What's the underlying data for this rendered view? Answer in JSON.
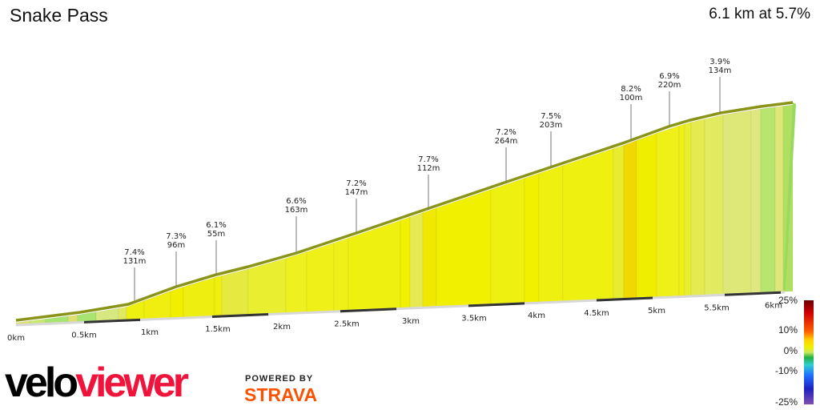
{
  "header": {
    "title": "Snake Pass",
    "summary": "6.1 km at 5.7%"
  },
  "chart_data": {
    "type": "area",
    "title": "Snake Pass",
    "subtitle": "6.1 km at 5.7%",
    "x_ticks": [
      "0km",
      "0.5km",
      "1km",
      "1.5km",
      "2km",
      "2.5km",
      "3km",
      "3.5km",
      "4km",
      "4.5km",
      "5km",
      "5.5km",
      "6km"
    ],
    "segment_annotations": [
      {
        "gradient": "7.4%",
        "length": "131m"
      },
      {
        "gradient": "7.3%",
        "length": "96m"
      },
      {
        "gradient": "6.1%",
        "length": "55m"
      },
      {
        "gradient": "6.6%",
        "length": "163m"
      },
      {
        "gradient": "7.2%",
        "length": "147m"
      },
      {
        "gradient": "7.7%",
        "length": "112m"
      },
      {
        "gradient": "7.2%",
        "length": "264m"
      },
      {
        "gradient": "7.5%",
        "length": "203m"
      },
      {
        "gradient": "8.2%",
        "length": "100m"
      },
      {
        "gradient": "6.9%",
        "length": "220m"
      },
      {
        "gradient": "3.9%",
        "length": "134m"
      }
    ],
    "legend": {
      "labels": [
        "25%",
        "10%",
        "0%",
        "-10%",
        "-25%"
      ],
      "colors": [
        "#6b0000",
        "#d00000",
        "#ff6000",
        "#ffd000",
        "#f0f000",
        "#c8e860",
        "#20b040",
        "#30d0d0",
        "#2070ff",
        "#2020c0",
        "#8050b0"
      ]
    }
  },
  "branding": {
    "logo_part1": "velo",
    "logo_part2": "viewer",
    "powered_by": "POWERED BY",
    "strava": "STRAVA"
  }
}
